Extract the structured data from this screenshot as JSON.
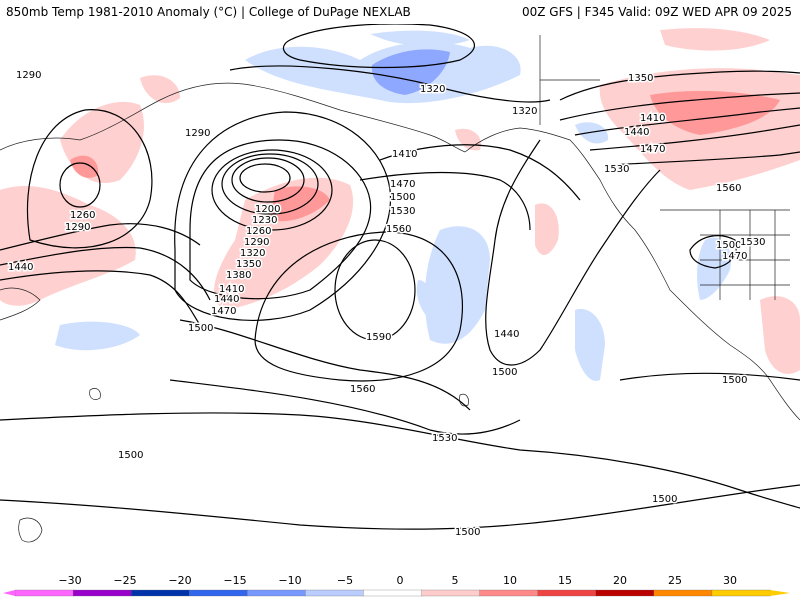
{
  "header": {
    "title_left": "850mb Temp 1981-2010 Anomaly (°C) | College of DuPage NEXLAB",
    "title_right": "00Z GFS | F345 Valid: 09Z WED APR 09 2025"
  },
  "map": {
    "field": "850mb Temp Anomaly with geopotential height contours",
    "height_contour_labels": [
      {
        "text": "1290"
      },
      {
        "text": "1260"
      },
      {
        "text": "1290"
      },
      {
        "text": "1440"
      },
      {
        "text": "1290"
      },
      {
        "text": "1200"
      },
      {
        "text": "1230"
      },
      {
        "text": "1260"
      },
      {
        "text": "1290"
      },
      {
        "text": "1320"
      },
      {
        "text": "1350"
      },
      {
        "text": "1380"
      },
      {
        "text": "1410"
      },
      {
        "text": "1440"
      },
      {
        "text": "1470"
      },
      {
        "text": "1500"
      },
      {
        "text": "1320"
      },
      {
        "text": "1320"
      },
      {
        "text": "1410"
      },
      {
        "text": "1470"
      },
      {
        "text": "1500"
      },
      {
        "text": "1530"
      },
      {
        "text": "1560"
      },
      {
        "text": "1590"
      },
      {
        "text": "1560"
      },
      {
        "text": "1440"
      },
      {
        "text": "1500"
      },
      {
        "text": "1530"
      },
      {
        "text": "1500"
      },
      {
        "text": "1350"
      },
      {
        "text": "1410"
      },
      {
        "text": "1440"
      },
      {
        "text": "1470"
      },
      {
        "text": "1530"
      },
      {
        "text": "1560"
      },
      {
        "text": "1500"
      },
      {
        "text": "1530"
      },
      {
        "text": "1470"
      },
      {
        "text": "1500"
      },
      {
        "text": "1500"
      },
      {
        "text": "1500"
      }
    ]
  },
  "colorbar": {
    "tick_labels": [
      "−30",
      "−25",
      "−20",
      "−15",
      "−10",
      "−5",
      "0",
      "5",
      "10",
      "15",
      "20",
      "25",
      "30"
    ],
    "colors": [
      "#ff66ff",
      "#9900cc",
      "#0033aa",
      "#3366ee",
      "#7799ff",
      "#bbccff",
      "#ffffff",
      "#ffcccc",
      "#ff8888",
      "#ee4444",
      "#bb0000",
      "#ff8800",
      "#ffcc00"
    ]
  }
}
